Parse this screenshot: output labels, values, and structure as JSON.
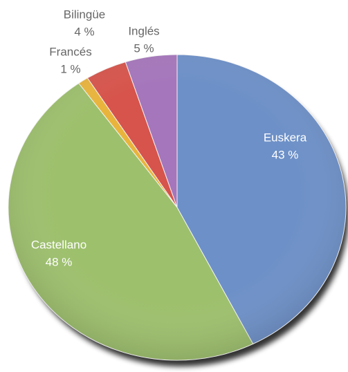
{
  "chart_data": {
    "type": "pie",
    "categories": [
      "Euskera",
      "Castellano",
      "Francés",
      "Bilingüe",
      "Inglés"
    ],
    "values": [
      43,
      48,
      1,
      4,
      5
    ],
    "value_labels": [
      "43 %",
      "48 %",
      "1 %",
      "4 %",
      "5 %"
    ],
    "colors": [
      "#6d90c8",
      "#9dc06c",
      "#e9b43c",
      "#d6544b",
      "#a576bb"
    ]
  }
}
